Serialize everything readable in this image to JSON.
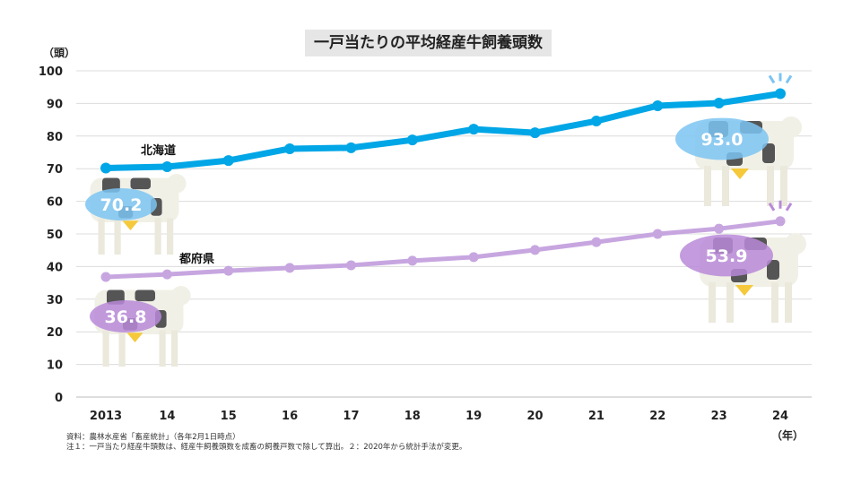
{
  "chart_data": {
    "type": "line",
    "title": "一戸当たりの平均経産牛飼養頭数",
    "ylabel": "（頭）",
    "xlabel": "（年）",
    "ylim": [
      0,
      100
    ],
    "yticks": [
      0,
      10,
      20,
      30,
      40,
      50,
      60,
      70,
      80,
      90,
      100
    ],
    "grid": true,
    "categories": [
      "2013",
      "14",
      "15",
      "16",
      "17",
      "18",
      "19",
      "20",
      "21",
      "22",
      "23",
      "24"
    ],
    "series": [
      {
        "name": "北海道",
        "color": "#00a6e6",
        "badge_color": "#7cc4f2",
        "values": [
          70.2,
          70.6,
          72.5,
          76.1,
          76.4,
          78.8,
          82.1,
          81.0,
          84.6,
          89.3,
          90.1,
          93.0
        ],
        "start_label": "70.2",
        "end_label": "93.0"
      },
      {
        "name": "都府県",
        "color": "#c7a6e0",
        "badge_color": "#b88ad8",
        "values": [
          36.8,
          37.6,
          38.7,
          39.6,
          40.4,
          41.8,
          42.9,
          45.1,
          47.5,
          50.0,
          51.6,
          53.9
        ],
        "start_label": "36.8",
        "end_label": "53.9"
      }
    ]
  },
  "notes": [
    "資料：農林水産省「畜産統計」（各年2月1日時点）",
    "注１：一戸当たり経産牛頭数は、経産牛飼養頭数を成畜の飼養戸数で除して算出。２：2020年から統計手法が変更。"
  ]
}
